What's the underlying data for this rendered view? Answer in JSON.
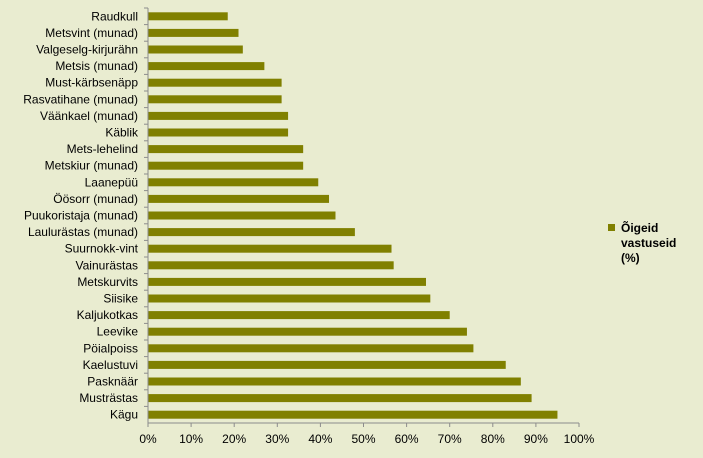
{
  "chart_data": {
    "type": "bar",
    "orientation": "horizontal",
    "categories": [
      "Raudkull",
      "Metsvint (munad)",
      "Valgeselg-kirjurähn",
      "Metsis (munad)",
      "Must-kärbsenäpp",
      "Rasvatihane (munad)",
      "Väänkael (munad)",
      "Käblik",
      "Mets-lehelind",
      "Metskiur (munad)",
      "Laanepüü",
      "Öösorr (munad)",
      "Puukoristaja (munad)",
      "Laulurästas (munad)",
      "Suurnokk-vint",
      "Vainurästas",
      "Metskurvits",
      "Siisike",
      "Kaljukotkas",
      "Leevike",
      "Pöialpoiss",
      "Kaelustuvi",
      "Pasknäär",
      "Musträstas",
      "Kägu"
    ],
    "series": [
      {
        "name": "Õigeid vastuseid (%)",
        "color": "#808000",
        "values": [
          18.5,
          21,
          22,
          27,
          31,
          31,
          32.5,
          32.5,
          36,
          36,
          39.5,
          42,
          43.5,
          48,
          56.5,
          57,
          64.5,
          65.5,
          70,
          74,
          75.5,
          83,
          86.5,
          89,
          95
        ]
      }
    ],
    "xlim": [
      0,
      100
    ],
    "xticks": [
      "0%",
      "10%",
      "20%",
      "30%",
      "40%",
      "50%",
      "60%",
      "70%",
      "80%",
      "90%",
      "100%"
    ],
    "grid": false,
    "legend": {
      "position": "right",
      "lines": [
        "Õigeid",
        "vastuseid",
        "(%)"
      ]
    },
    "background_color": "#e9ecd0",
    "axis_color": "#8c8c8c"
  }
}
